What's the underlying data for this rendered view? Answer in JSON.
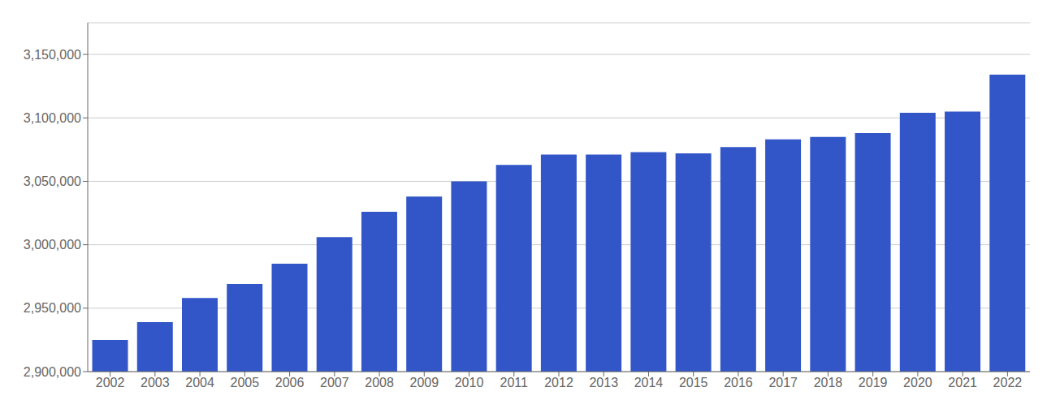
{
  "chart_data": {
    "type": "bar",
    "categories": [
      "2002",
      "2003",
      "2004",
      "2005",
      "2006",
      "2007",
      "2008",
      "2009",
      "2010",
      "2011",
      "2012",
      "2013",
      "2014",
      "2015",
      "2016",
      "2017",
      "2018",
      "2019",
      "2020",
      "2021",
      "2022"
    ],
    "values": [
      2925000,
      2939000,
      2958000,
      2969000,
      2985000,
      3006000,
      3026000,
      3038000,
      3050000,
      3063000,
      3071000,
      3071000,
      3073000,
      3072000,
      3077000,
      3083000,
      3085000,
      3088000,
      3104000,
      3105000,
      3134000
    ],
    "color": "#3256c8",
    "ylim": [
      2900000,
      3175000
    ],
    "yticks": [
      {
        "value": 2900000,
        "label": "2,900,000"
      },
      {
        "value": 2950000,
        "label": "2,950,000"
      },
      {
        "value": 3000000,
        "label": "3,000,000"
      },
      {
        "value": 3050000,
        "label": "3,050,000"
      },
      {
        "value": 3100000,
        "label": "3,100,000"
      },
      {
        "value": 3150000,
        "label": "3,150,000"
      }
    ],
    "grid": true
  }
}
